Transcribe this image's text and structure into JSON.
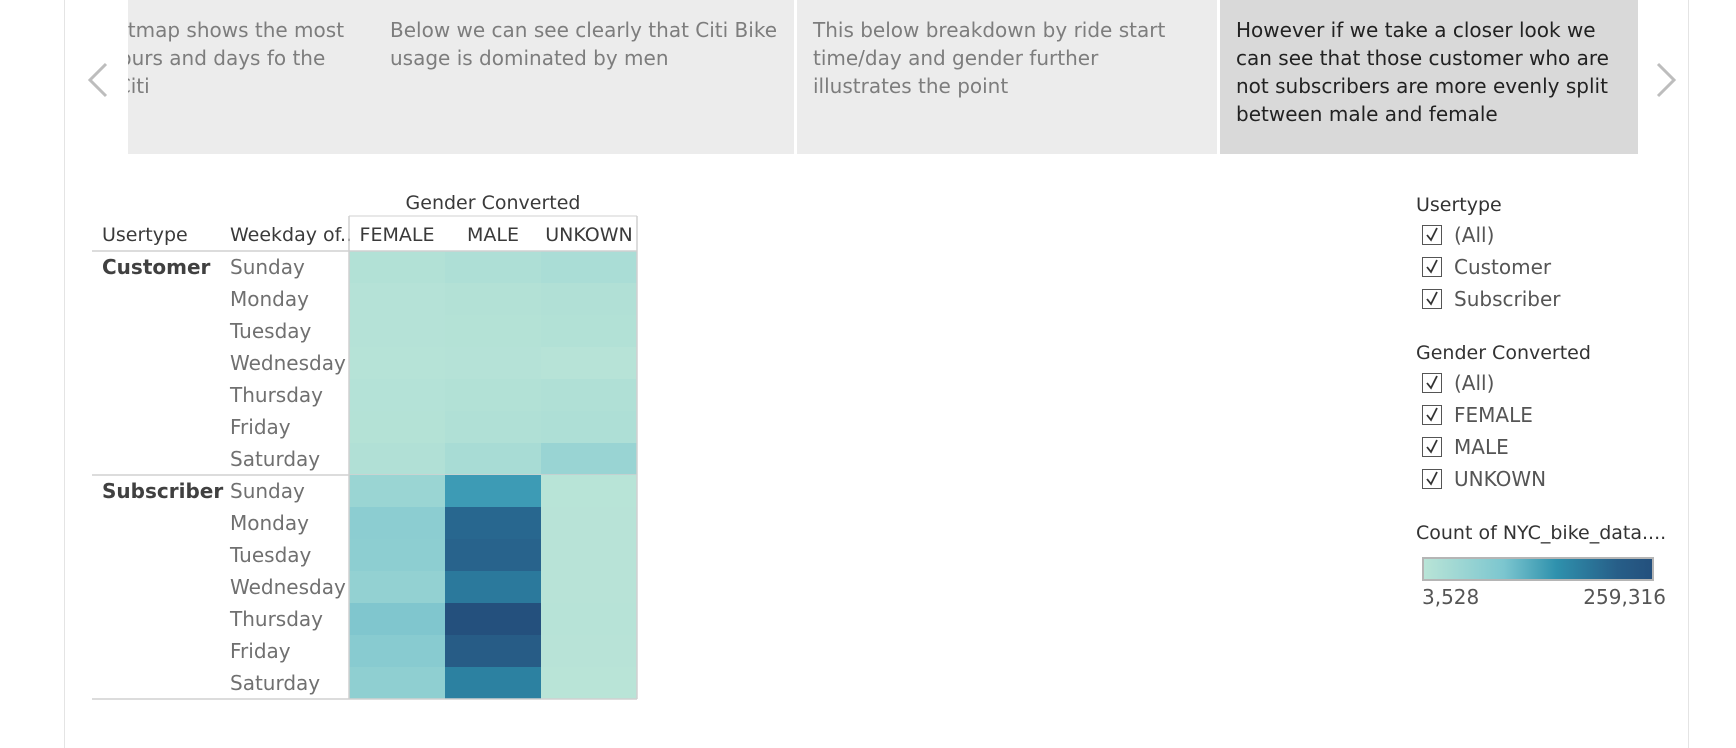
{
  "story": {
    "captions": [
      "Below heatmap shows the most popular hours and days fo the week for Citi",
      "Below we can see clearly that Citi Bike usage is dominated by men",
      "This below breakdown by ride start time/day and gender further illustrates the point",
      "However if we take a closer look we can see that those customer who are not subscribers  are more evenly split between male and female"
    ],
    "active_index": 3
  },
  "icons": {
    "prev": "chevron-left-icon",
    "next": "chevron-right-icon",
    "checkbox": "checkmark-icon"
  },
  "chart_data": {
    "type": "heatmap",
    "title": "Gender Converted",
    "row_headers": [
      "Usertype",
      "Weekday of.."
    ],
    "columns": [
      "FEMALE",
      "MALE",
      "UNKOWN"
    ],
    "groups": [
      {
        "name": "Customer",
        "rows": [
          {
            "day": "Sunday",
            "values": [
              14000,
              21000,
              27000
            ]
          },
          {
            "day": "Monday",
            "values": [
              10500,
              13000,
              16500
            ]
          },
          {
            "day": "Tuesday",
            "values": [
              9500,
              12000,
              15500
            ]
          },
          {
            "day": "Wednesday",
            "values": [
              8000,
              9500,
              6500
            ]
          },
          {
            "day": "Thursday",
            "values": [
              11000,
              15500,
              18000
            ]
          },
          {
            "day": "Friday",
            "values": [
              12000,
              18000,
              20500
            ]
          },
          {
            "day": "Saturday",
            "values": [
              17000,
              31000,
              51000
            ]
          }
        ]
      },
      {
        "name": "Subscriber",
        "rows": [
          {
            "day": "Sunday",
            "values": [
              50000,
              148000,
              5000
            ]
          },
          {
            "day": "Monday",
            "values": [
              68000,
              214000,
              5500
            ]
          },
          {
            "day": "Tuesday",
            "values": [
              66000,
              220000,
              5500
            ]
          },
          {
            "day": "Wednesday",
            "values": [
              59000,
              190000,
              5500
            ]
          },
          {
            "day": "Thursday",
            "values": [
              81000,
              259316,
              6000
            ]
          },
          {
            "day": "Friday",
            "values": [
              72000,
              232000,
              5500
            ]
          },
          {
            "day": "Saturday",
            "values": [
              64000,
              181000,
              3528
            ]
          }
        ]
      }
    ],
    "color_scale": {
      "min": 3528,
      "max": 259316,
      "min_label": "3,528",
      "max_label": "259,316",
      "stops": [
        "#b9e4d7",
        "#a5dbd5",
        "#8ccdd1",
        "#70bdcb",
        "#4da6be",
        "#2f91ad",
        "#2a7498",
        "#275e88",
        "#24507d"
      ]
    }
  },
  "filters": [
    {
      "title": "Usertype",
      "options": [
        "(All)",
        "Customer",
        "Subscriber"
      ]
    },
    {
      "title": "Gender Converted",
      "options": [
        "(All)",
        "FEMALE",
        "MALE",
        "UNKOWN"
      ]
    }
  ],
  "legend": {
    "title": "Count of NYC_bike_data...."
  }
}
